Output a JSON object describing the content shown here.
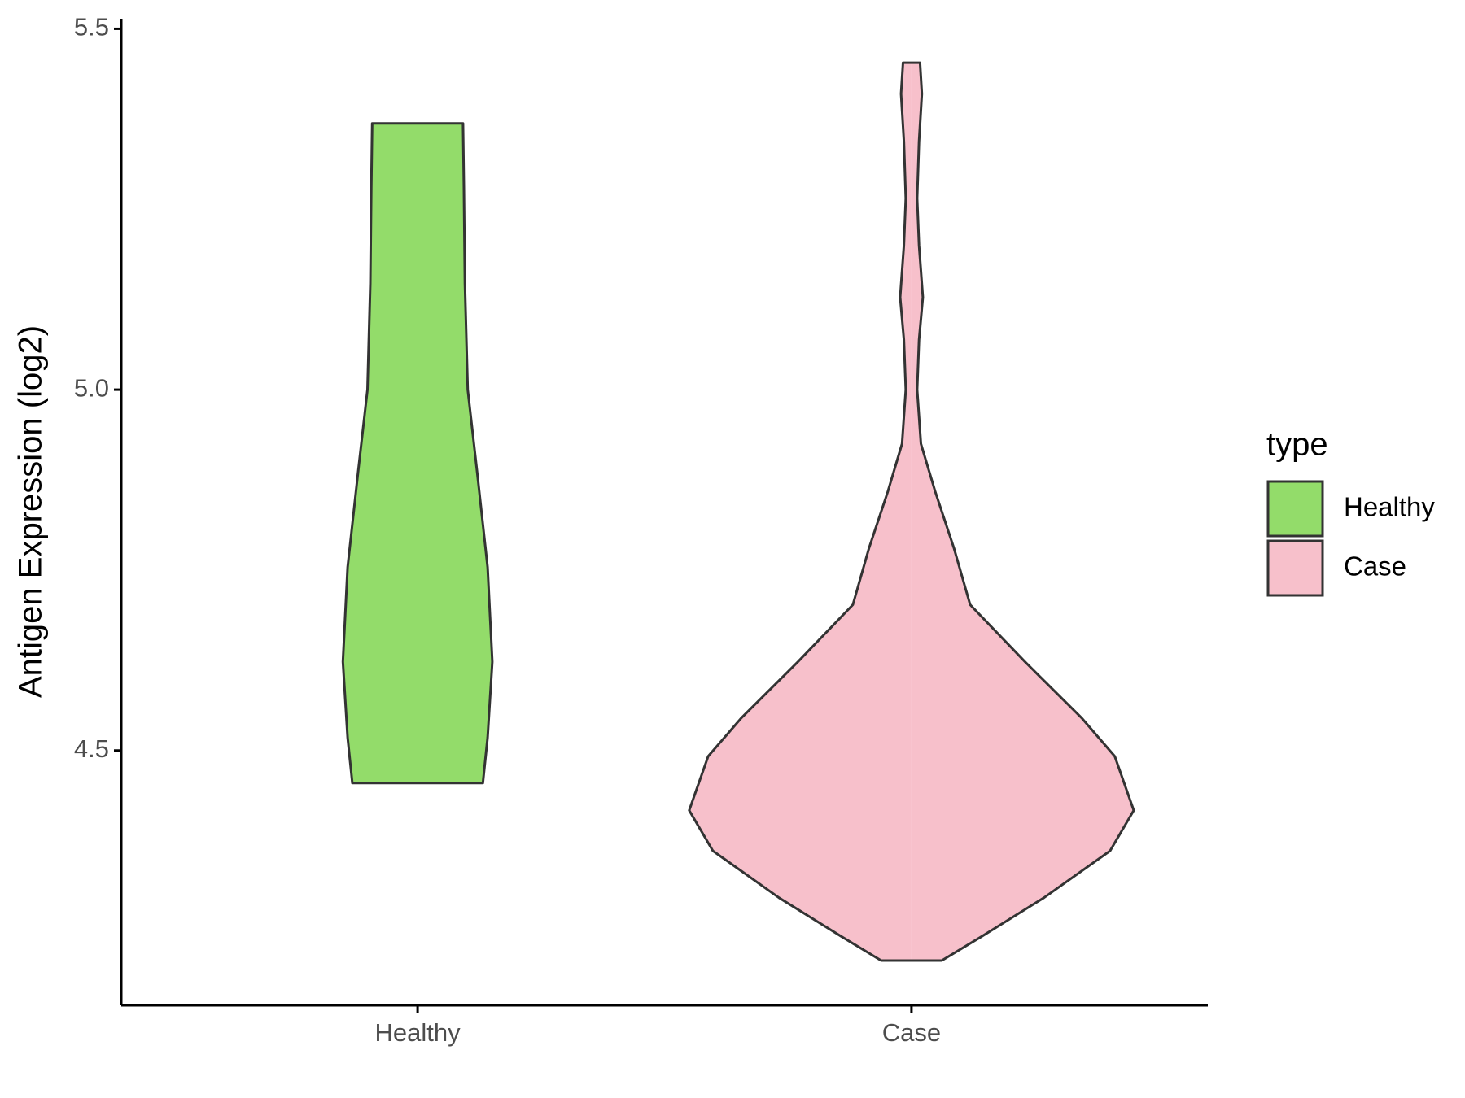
{
  "chart_data": {
    "type": "violin",
    "ylabel": "Antigen Expression (log2)",
    "categories": [
      "Healthy",
      "Case"
    ],
    "legend_title": "type",
    "legend_position": "right",
    "ylim": [
      4.147,
      5.514
    ],
    "yticks": [
      4.5,
      {
        "value": 5,
        "label": "5.0"
      },
      5.5
    ],
    "series": [
      {
        "name": "Healthy",
        "color": "#93dc6a",
        "y": [
          5.369,
          5.279,
          5.147,
          5.0,
          4.885,
          4.754,
          4.623,
          4.518,
          4.455
        ],
        "width": [
          48,
          49,
          50,
          53,
          63,
          74,
          79,
          74,
          69
        ]
      },
      {
        "name": "Case",
        "color": "#f7c0cb",
        "y": [
          5.453,
          5.41,
          5.344,
          5.265,
          5.2,
          5.128,
          5.069,
          5.0,
          4.925,
          4.859,
          4.78,
          4.702,
          4.623,
          4.545,
          4.492,
          4.417,
          4.361,
          4.296,
          4.243,
          4.209
        ],
        "width": [
          9,
          11,
          8,
          6,
          8,
          12,
          8,
          6,
          10,
          25,
          45,
          62,
          120,
          180,
          215,
          235,
          210,
          140,
          75,
          32
        ]
      }
    ]
  }
}
